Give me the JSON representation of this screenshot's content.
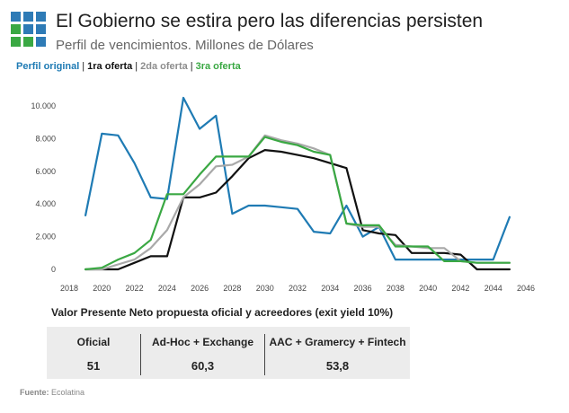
{
  "header": {
    "title": "El Gobierno se estira pero las diferencias persisten",
    "subtitle": "Perfil de vencimientos. Millones de Dólares"
  },
  "legend": [
    {
      "label": "Perfil original",
      "color": "#1f7bb4"
    },
    {
      "label": "1ra oferta",
      "color": "#111111"
    },
    {
      "label": "2da oferta",
      "color": "#a9a9a9"
    },
    {
      "label": "3ra oferta",
      "color": "#3aa843"
    }
  ],
  "chart_data": {
    "type": "line",
    "x": [
      2019,
      2020,
      2021,
      2022,
      2023,
      2024,
      2025,
      2026,
      2027,
      2028,
      2029,
      2030,
      2031,
      2032,
      2033,
      2034,
      2035,
      2036,
      2037,
      2038,
      2039,
      2040,
      2041,
      2042,
      2043,
      2044,
      2045
    ],
    "xlim": [
      2018,
      2046
    ],
    "ylim": [
      0,
      10000
    ],
    "xticks": [
      "2018",
      "2020",
      "2022",
      "2024",
      "2026",
      "2028",
      "2030",
      "2032",
      "2034",
      "2036",
      "2038",
      "2040",
      "2042",
      "2044",
      "2046"
    ],
    "yticks": [
      "0",
      "2.000",
      "4.000",
      "6.000",
      "8.000",
      "10.000"
    ],
    "grid": false,
    "series": [
      {
        "name": "Perfil original",
        "color": "#1f7bb4",
        "values": [
          3300,
          8300,
          8200,
          6500,
          4400,
          4300,
          10500,
          8600,
          9400,
          3400,
          3900,
          3900,
          3800,
          3700,
          2300,
          2200,
          3900,
          2000,
          2600,
          600,
          600,
          600,
          600,
          600,
          600,
          600,
          3200
        ]
      },
      {
        "name": "1ra oferta",
        "color": "#111111",
        "values": [
          0,
          0,
          0,
          400,
          800,
          800,
          4400,
          4400,
          4700,
          5700,
          6800,
          7300,
          7200,
          7000,
          6800,
          6500,
          6200,
          2400,
          2200,
          2100,
          1000,
          1000,
          1000,
          900,
          0,
          0,
          0
        ]
      },
      {
        "name": "2da oferta",
        "color": "#a9a9a9",
        "values": [
          0,
          0,
          300,
          600,
          1300,
          2400,
          4400,
          5200,
          6300,
          6400,
          6900,
          8200,
          7900,
          7700,
          7400,
          7000,
          2800,
          2600,
          2600,
          1500,
          1400,
          1300,
          1300,
          500,
          400,
          400,
          400
        ]
      },
      {
        "name": "3ra oferta",
        "color": "#3aa843",
        "values": [
          0,
          100,
          600,
          1000,
          1800,
          4600,
          4600,
          5800,
          6900,
          6900,
          6900,
          8100,
          7800,
          7600,
          7200,
          7000,
          2800,
          2700,
          2700,
          1400,
          1400,
          1400,
          500,
          500,
          400,
          400,
          400
        ]
      }
    ]
  },
  "vpn": {
    "title": "Valor Presente Neto propuesta oficial y acreedores (exit yield 10%)",
    "columns": [
      {
        "header": "Oficial",
        "value": "51"
      },
      {
        "header": "Ad-Hoc + Exchange",
        "value": "60,3"
      },
      {
        "header": "AAC + Gramercy + Fintech",
        "value": "53,8"
      }
    ]
  },
  "source": {
    "label": "Fuente:",
    "value": "Ecolatina"
  }
}
